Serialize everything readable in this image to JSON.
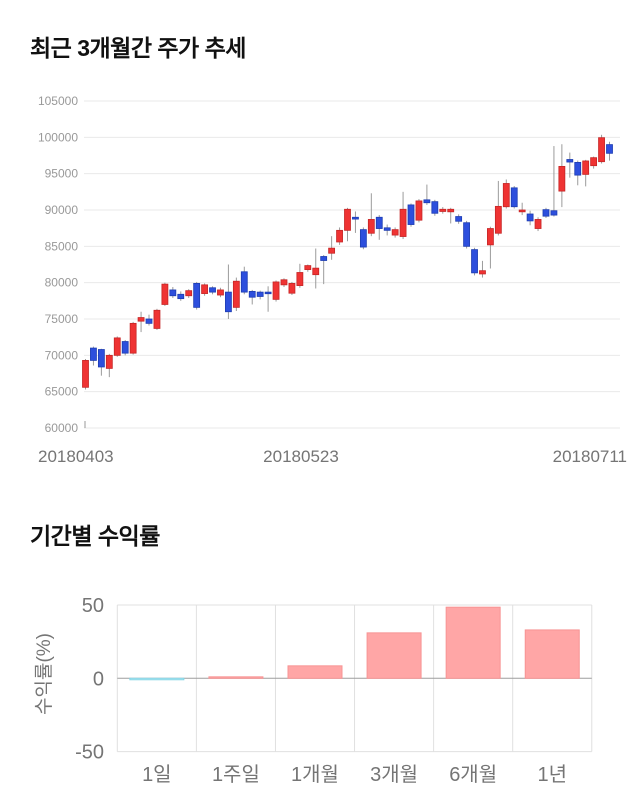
{
  "chart_data": [
    {
      "type": "candlestick",
      "title": "최근 3개월간 주가 추세",
      "ylim": [
        60000,
        105000
      ],
      "y_tick_step": 5000,
      "y_ticks": [
        105000,
        100000,
        95000,
        90000,
        85000,
        80000,
        75000,
        70000,
        65000,
        60000
      ],
      "x_tick_labels": [
        "20180403",
        "20180523",
        "20180711"
      ],
      "grid": true,
      "columns": [
        "date",
        "open",
        "high",
        "low",
        "close"
      ],
      "candles": [
        [
          "20180403",
          65600,
          69500,
          65300,
          69300
        ],
        [
          "20180404",
          71000,
          71200,
          68600,
          69300
        ],
        [
          "20180405",
          70800,
          70900,
          67200,
          68400
        ],
        [
          "20180406",
          68200,
          70200,
          67000,
          70000
        ],
        [
          "20180409",
          70000,
          72600,
          69800,
          72400
        ],
        [
          "20180410",
          71900,
          72100,
          70000,
          70300
        ],
        [
          "20180411",
          70300,
          74600,
          70100,
          74400
        ],
        [
          "20180412",
          74700,
          76000,
          73200,
          75200
        ],
        [
          "20180413",
          75000,
          75600,
          74100,
          74400
        ],
        [
          "20180416",
          73700,
          76400,
          73500,
          76200
        ],
        [
          "20180417",
          77000,
          80000,
          76800,
          79800
        ],
        [
          "20180418",
          79000,
          79400,
          77900,
          78200
        ],
        [
          "20180419",
          78400,
          78800,
          77500,
          77800
        ],
        [
          "20180420",
          78200,
          79100,
          77900,
          78900
        ],
        [
          "20180423",
          79900,
          80100,
          76300,
          76600
        ],
        [
          "20180424",
          78500,
          79900,
          78200,
          79700
        ],
        [
          "20180425",
          79300,
          79500,
          78400,
          78700
        ],
        [
          "20180426",
          78300,
          79300,
          78000,
          79000
        ],
        [
          "20180427",
          78700,
          82500,
          75000,
          76000
        ],
        [
          "20180430",
          76600,
          80700,
          76100,
          80200
        ],
        [
          "20180502",
          81500,
          82200,
          78400,
          78700
        ],
        [
          "20180503",
          78800,
          79000,
          77000,
          78000
        ],
        [
          "20180504",
          78700,
          78900,
          77700,
          78100
        ],
        [
          "20180508",
          78700,
          79500,
          76000,
          78600
        ],
        [
          "20180509",
          77700,
          80300,
          77400,
          80100
        ],
        [
          "20180510",
          79700,
          80600,
          79400,
          80400
        ],
        [
          "20180511",
          78550,
          80100,
          78300,
          79900
        ],
        [
          "20180514",
          79600,
          82600,
          79300,
          81400
        ],
        [
          "20180515",
          81800,
          82500,
          81500,
          82350
        ],
        [
          "20180516",
          81100,
          84700,
          79200,
          82000
        ],
        [
          "20180517",
          83600,
          83800,
          79800,
          83050
        ],
        [
          "20180518",
          84050,
          86400,
          83150,
          84750
        ],
        [
          "20180521",
          85600,
          87600,
          85200,
          87200
        ],
        [
          "20180523",
          87200,
          90300,
          85700,
          90100
        ],
        [
          "20180524",
          89000,
          89800,
          86850,
          88750
        ],
        [
          "20180525",
          87300,
          87600,
          84600,
          84900
        ],
        [
          "20180528",
          86800,
          92300,
          86400,
          88700
        ],
        [
          "20180529",
          89000,
          89300,
          85900,
          87450
        ],
        [
          "20180530",
          87550,
          88000,
          86500,
          87200
        ],
        [
          "20180531",
          86550,
          87600,
          86200,
          87300
        ],
        [
          "20180601",
          86350,
          92500,
          86000,
          90100
        ],
        [
          "20180604",
          90700,
          90900,
          87700,
          88000
        ],
        [
          "20180605",
          88600,
          91500,
          88300,
          91250
        ],
        [
          "20180607",
          91400,
          93500,
          90700,
          91000
        ],
        [
          "20180608",
          91150,
          91400,
          89200,
          89550
        ],
        [
          "20180611",
          89800,
          90400,
          89500,
          90100
        ],
        [
          "20180612",
          89750,
          90300,
          88150,
          90100
        ],
        [
          "20180614",
          89100,
          89400,
          88100,
          88450
        ],
        [
          "20180615",
          88250,
          88500,
          84700,
          85000
        ],
        [
          "20180618",
          84550,
          84800,
          81000,
          81350
        ],
        [
          "20180619",
          81200,
          83000,
          80700,
          81650
        ],
        [
          "20180620",
          85200,
          87700,
          81950,
          87450
        ],
        [
          "20180621",
          86800,
          94000,
          86500,
          90500
        ],
        [
          "20180622",
          90450,
          94200,
          90200,
          93650
        ],
        [
          "20180625",
          93050,
          93300,
          90200,
          90450
        ],
        [
          "20180626",
          89750,
          91000,
          89300,
          90000
        ],
        [
          "20180627",
          89450,
          89900,
          87900,
          88500
        ],
        [
          "20180628",
          87450,
          89000,
          87100,
          88700
        ],
        [
          "20180629",
          90050,
          90300,
          88900,
          89150
        ],
        [
          "20180702",
          89900,
          98800,
          89100,
          89300
        ],
        [
          "20180703",
          92600,
          99050,
          90400,
          96000
        ],
        [
          "20180704",
          96950,
          97900,
          94450,
          96600
        ],
        [
          "20180705",
          96550,
          96800,
          93400,
          94800
        ],
        [
          "20180706",
          94900,
          96900,
          93250,
          96750
        ],
        [
          "20180709",
          96100,
          97350,
          95700,
          97200
        ],
        [
          "20180710",
          96650,
          100350,
          96400,
          99950
        ],
        [
          "20180711",
          99000,
          99400,
          96800,
          97800
        ]
      ],
      "colors": {
        "up_fill": "#ef3333",
        "up_border": "#c62626",
        "down_fill": "#2d4fdd",
        "down_border": "#1d3db2",
        "wick": "#9b9b9b",
        "grid": "#e9e9e9",
        "y_tick_text": "#999999",
        "x_tick_text": "#757575"
      }
    },
    {
      "type": "bar",
      "title": "기간별 수익률",
      "ylabel": "수익률(%)",
      "categories": [
        "1일",
        "1주일",
        "1개월",
        "3개월",
        "6개월",
        "1년"
      ],
      "values": [
        -1,
        1,
        8.5,
        31,
        48.5,
        33
      ],
      "ylim": [
        -50,
        50
      ],
      "y_ticks": [
        50,
        0,
        -50
      ],
      "grid": true,
      "legend": "none",
      "colors": {
        "positive_fill": "#ffa6a6",
        "positive_border": "#f79494",
        "negative_fill": "#cdeef5",
        "negative_border": "#83d6e6",
        "zero_line": "#9e9e9e",
        "grid": "#e0e0e0",
        "text": "#757575"
      }
    }
  ]
}
